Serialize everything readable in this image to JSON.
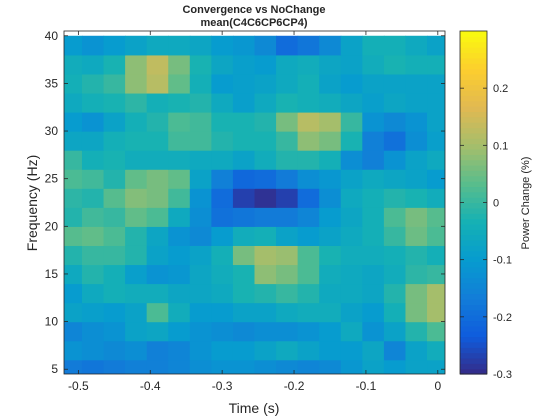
{
  "chart_data": {
    "type": "heatmap",
    "title": "Convergence vs NoChange",
    "subtitle": "mean(C4C6CP6CP4)",
    "xlabel": "Time (s)",
    "ylabel": "Frequency (Hz)",
    "colorbar_label": "Power Change (%)",
    "colormap": "parula",
    "xlim": [
      -0.52,
      0.01
    ],
    "ylim": [
      4.5,
      40.5
    ],
    "clim": [
      -0.3,
      0.3
    ],
    "x_ticks": [
      -0.5,
      -0.4,
      -0.3,
      -0.2,
      -0.1,
      0
    ],
    "x_tick_labels": [
      "-0.5",
      "-0.4",
      "-0.3",
      "-0.2",
      "-0.1",
      "0"
    ],
    "y_ticks": [
      5,
      10,
      15,
      20,
      25,
      30,
      35,
      40
    ],
    "y_tick_labels": [
      "5",
      "10",
      "15",
      "20",
      "25",
      "30",
      "35",
      "40"
    ],
    "colorbar_ticks": [
      -0.3,
      -0.2,
      -0.1,
      0,
      0.1,
      0.2
    ],
    "colorbar_tick_labels": [
      "-0.3",
      "-0.2",
      "-0.1",
      "0",
      "0.1",
      "0.2"
    ],
    "x": [
      -0.51,
      -0.48,
      -0.45,
      -0.42,
      -0.39,
      -0.36,
      -0.33,
      -0.3,
      -0.27,
      -0.24,
      -0.21,
      -0.18,
      -0.15,
      -0.12,
      -0.09,
      -0.06,
      -0.03,
      0.0
    ],
    "y": [
      5,
      7,
      9,
      11,
      13,
      15,
      17,
      19,
      21,
      23,
      25,
      27,
      29,
      31,
      33,
      35,
      37,
      39
    ],
    "z": [
      [
        -0.17,
        -0.18,
        -0.17,
        -0.16,
        -0.16,
        -0.15,
        -0.13,
        -0.12,
        -0.12,
        -0.13,
        -0.14,
        -0.15,
        -0.14,
        -0.11,
        -0.08,
        -0.1,
        -0.08,
        -0.08
      ],
      [
        -0.12,
        -0.13,
        -0.14,
        -0.13,
        -0.16,
        -0.15,
        -0.12,
        -0.1,
        -0.1,
        -0.08,
        -0.06,
        -0.08,
        -0.1,
        -0.1,
        -0.07,
        -0.15,
        -0.08,
        -0.05
      ],
      [
        -0.15,
        -0.13,
        -0.12,
        -0.08,
        -0.07,
        -0.1,
        -0.12,
        -0.13,
        -0.14,
        -0.13,
        -0.13,
        -0.12,
        -0.1,
        -0.06,
        -0.12,
        -0.08,
        -0.02,
        0.02
      ],
      [
        -0.08,
        -0.09,
        -0.1,
        -0.08,
        0.02,
        -0.05,
        -0.1,
        -0.1,
        -0.08,
        -0.08,
        -0.06,
        -0.05,
        -0.05,
        -0.08,
        -0.1,
        -0.04,
        0.06,
        0.1
      ],
      [
        -0.1,
        -0.06,
        -0.04,
        -0.05,
        -0.05,
        -0.07,
        -0.07,
        -0.06,
        -0.03,
        -0.02,
        0.0,
        -0.02,
        -0.06,
        -0.06,
        -0.07,
        -0.02,
        0.06,
        0.1
      ],
      [
        -0.06,
        -0.02,
        -0.04,
        -0.09,
        -0.12,
        -0.11,
        -0.07,
        -0.05,
        -0.03,
        0.08,
        0.06,
        0.02,
        -0.05,
        -0.06,
        -0.07,
        -0.05,
        -0.01,
        0.0
      ],
      [
        -0.02,
        0.0,
        0.0,
        -0.02,
        -0.08,
        -0.1,
        -0.08,
        -0.04,
        0.06,
        0.1,
        0.09,
        0.02,
        -0.03,
        -0.05,
        -0.05,
        -0.04,
        -0.02,
        -0.04
      ],
      [
        0.03,
        0.04,
        0.02,
        -0.02,
        -0.07,
        -0.12,
        -0.14,
        -0.1,
        -0.05,
        -0.04,
        -0.08,
        -0.1,
        -0.08,
        -0.06,
        -0.04,
        0.0,
        0.05,
        0.02
      ],
      [
        -0.02,
        0.01,
        0.0,
        0.04,
        0.02,
        -0.06,
        -0.13,
        -0.19,
        -0.18,
        -0.17,
        -0.17,
        -0.15,
        -0.1,
        -0.07,
        -0.04,
        0.02,
        0.06,
        0.03
      ],
      [
        -0.01,
        -0.02,
        0.03,
        0.07,
        0.06,
        0.01,
        -0.12,
        -0.2,
        -0.27,
        -0.29,
        -0.27,
        -0.2,
        -0.13,
        -0.06,
        -0.04,
        -0.02,
        -0.03,
        -0.05
      ],
      [
        0.02,
        0.01,
        -0.02,
        0.04,
        0.06,
        0.04,
        -0.08,
        -0.16,
        -0.21,
        -0.2,
        -0.17,
        -0.13,
        -0.11,
        -0.08,
        -0.06,
        -0.07,
        -0.08,
        -0.1
      ],
      [
        0.0,
        -0.04,
        -0.03,
        -0.05,
        -0.05,
        -0.05,
        -0.06,
        -0.06,
        -0.08,
        -0.05,
        -0.02,
        -0.02,
        -0.04,
        -0.13,
        -0.16,
        -0.12,
        -0.08,
        -0.06
      ],
      [
        -0.07,
        -0.07,
        -0.04,
        -0.03,
        -0.03,
        0.01,
        0.01,
        -0.02,
        -0.03,
        -0.03,
        0.0,
        0.08,
        0.06,
        -0.03,
        -0.16,
        -0.19,
        -0.13,
        -0.09
      ],
      [
        -0.1,
        -0.12,
        -0.08,
        -0.04,
        -0.02,
        0.02,
        0.01,
        -0.03,
        -0.03,
        -0.02,
        0.06,
        0.12,
        0.1,
        0.0,
        -0.12,
        -0.14,
        -0.12,
        -0.08
      ],
      [
        -0.06,
        -0.04,
        -0.03,
        -0.01,
        -0.04,
        -0.03,
        -0.02,
        -0.06,
        -0.09,
        -0.06,
        -0.03,
        -0.04,
        -0.05,
        -0.07,
        -0.09,
        -0.07,
        -0.08,
        -0.08
      ],
      [
        -0.04,
        -0.02,
        0.0,
        0.08,
        0.12,
        0.04,
        -0.04,
        -0.1,
        -0.09,
        -0.08,
        -0.06,
        -0.04,
        -0.08,
        -0.1,
        -0.08,
        -0.08,
        -0.08,
        -0.08
      ],
      [
        -0.05,
        -0.06,
        -0.03,
        0.08,
        0.13,
        0.06,
        -0.03,
        -0.07,
        -0.09,
        -0.1,
        -0.06,
        -0.05,
        -0.07,
        -0.08,
        -0.05,
        -0.03,
        -0.04,
        -0.04
      ],
      [
        -0.1,
        -0.12,
        -0.1,
        -0.08,
        -0.06,
        -0.06,
        -0.07,
        -0.1,
        -0.11,
        -0.14,
        -0.2,
        -0.18,
        -0.14,
        -0.08,
        -0.04,
        -0.04,
        -0.06,
        -0.08
      ]
    ]
  }
}
